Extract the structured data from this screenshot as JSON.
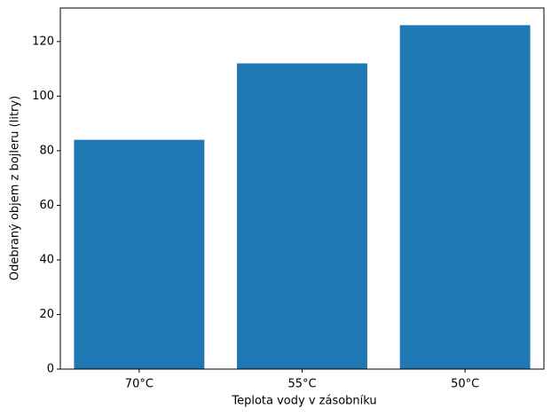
{
  "chart_data": {
    "type": "bar",
    "x_label": "Teplota vody v zásobníku",
    "y_label": "Odebraný objem z bojleru (litry)",
    "categories": [
      "70°C",
      "55°C",
      "50°C"
    ],
    "values": [
      84,
      112,
      126
    ],
    "color": "#1f77b4",
    "ylim": [
      0,
      132.3
    ],
    "yticks": [
      0,
      20,
      40,
      60,
      80,
      100,
      120
    ]
  }
}
